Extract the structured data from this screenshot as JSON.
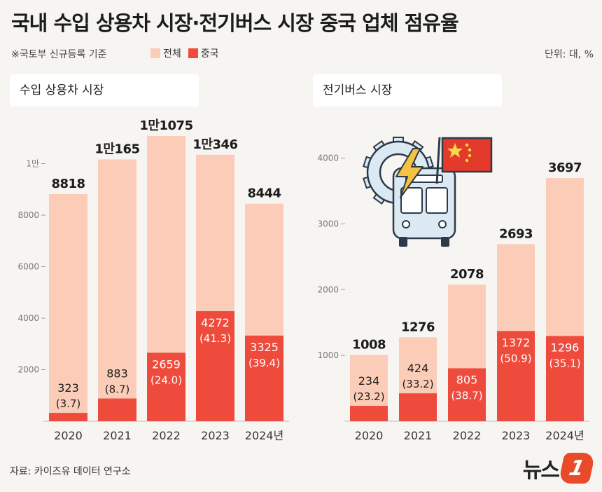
{
  "header": {
    "title": "국내 수입 상용차 시장·전기버스 시장 중국 업체 점유율",
    "note": "※국토부 신규등록 기준",
    "legend_total": "전체",
    "legend_china": "중국",
    "unit": "단위: 대, %"
  },
  "colors": {
    "total": "#fbcdb8",
    "china": "#ef4b3c",
    "background": "#f6f5f2"
  },
  "footer": {
    "source": "자료: 카이즈유 데이터 연구소",
    "logo_text": "뉴스",
    "logo_mark": "1"
  },
  "illustration": {
    "icon": "gear-lightning-electric-bus-with-china-flag-icon"
  },
  "chart_data": [
    {
      "type": "bar",
      "title": "수입 상용차 시장",
      "categories": [
        "2020",
        "2021",
        "2022",
        "2023",
        "2024년"
      ],
      "ylim": [
        0,
        12000
      ],
      "yticks": [
        2000,
        4000,
        6000,
        8000,
        10000
      ],
      "ytick_labels": [
        "2000",
        "4000",
        "6000",
        "8000",
        "1만"
      ],
      "series": [
        {
          "name": "전체",
          "values": [
            8818,
            10165,
            11075,
            10346,
            8444
          ],
          "labels": [
            "8818",
            "1만165",
            "1만1075",
            "1만346",
            "8444"
          ]
        },
        {
          "name": "중국",
          "values": [
            323,
            883,
            2659,
            4272,
            3325
          ],
          "labels": [
            "323",
            "883",
            "2659",
            "4272",
            "3325"
          ],
          "shares": [
            "(3.7)",
            "(8.7)",
            "(24.0)",
            "(41.3)",
            "(39.4)"
          ]
        }
      ]
    },
    {
      "type": "bar",
      "title": "전기버스 시장",
      "categories": [
        "2020",
        "2021",
        "2022",
        "2023",
        "2024년"
      ],
      "ylim": [
        0,
        4700
      ],
      "yticks": [
        1000,
        2000,
        3000,
        4000
      ],
      "ytick_labels": [
        "1000",
        "2000",
        "3000",
        "4000"
      ],
      "series": [
        {
          "name": "전체",
          "values": [
            1008,
            1276,
            2078,
            2693,
            3697
          ],
          "labels": [
            "1008",
            "1276",
            "2078",
            "2693",
            "3697"
          ]
        },
        {
          "name": "중국",
          "values": [
            234,
            424,
            805,
            1372,
            1296
          ],
          "labels": [
            "234",
            "424",
            "805",
            "1372",
            "1296"
          ],
          "shares": [
            "(23.2)",
            "(33.2)",
            "(38.7)",
            "(50.9)",
            "(35.1)"
          ]
        }
      ]
    }
  ]
}
